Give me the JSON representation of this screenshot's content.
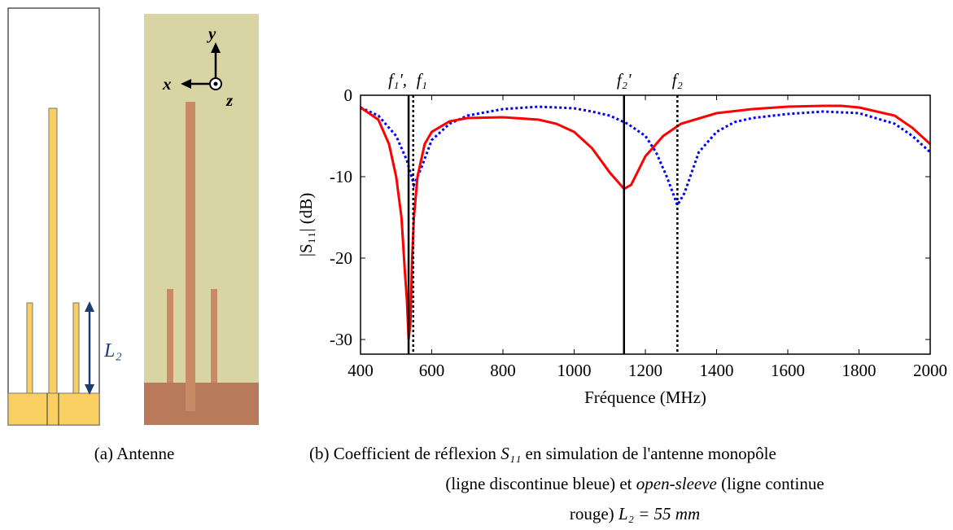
{
  "panel_a": {
    "label": "L₂",
    "axis_x": "x",
    "axis_y": "y",
    "axis_z": "z",
    "caption": "(a) Antenne"
  },
  "panel_b": {
    "caption": [
      [
        "(b) Coefficient de réflexion ",
        "S₁₁",
        " en simulation de l'antenne monopôle"
      ],
      [
        "(ligne discontinue bleue) et ",
        "open-sleeve",
        " (ligne continue"
      ],
      [
        "rouge) ",
        "L₂ = 55 mm"
      ]
    ]
  },
  "chart_data": {
    "type": "line",
    "xlabel": "Fréquence (MHz)",
    "ylabel": "|S₁₁| (dB)",
    "xlim": [
      400,
      2000
    ],
    "ylim": [
      -31.8,
      0
    ],
    "xticks": [
      400,
      600,
      800,
      1000,
      1200,
      1400,
      1600,
      1800,
      2000
    ],
    "yticks": [
      0,
      -10,
      -20,
      -30
    ],
    "markers": [
      {
        "x": 535,
        "label": "f₁',",
        "style": "solid"
      },
      {
        "x": 548,
        "label": "f₁",
        "style": "dotted"
      },
      {
        "x": 1140,
        "label": "f₂'",
        "style": "solid"
      },
      {
        "x": 1290,
        "label": "f₂",
        "style": "dotted"
      }
    ],
    "series": [
      {
        "color": "#0000ff",
        "style": "dotted",
        "x": [
          400,
          450,
          500,
          530,
          550,
          570,
          600,
          650,
          700,
          800,
          900,
          1000,
          1050,
          1100,
          1150,
          1200,
          1230,
          1260,
          1290,
          1310,
          1350,
          1400,
          1450,
          1500,
          1600,
          1700,
          1800,
          1900,
          1950,
          2000
        ],
        "values": [
          -1.5,
          -2.5,
          -5,
          -8,
          -11,
          -9,
          -5.5,
          -3.5,
          -2.5,
          -1.7,
          -1.4,
          -1.6,
          -2,
          -2.5,
          -3.5,
          -5,
          -7,
          -10,
          -13.5,
          -12,
          -7,
          -4.5,
          -3.3,
          -2.8,
          -2.3,
          -2,
          -2.2,
          -3.5,
          -5,
          -7
        ]
      },
      {
        "color": "#ff0000",
        "style": "solid",
        "x": [
          400,
          450,
          480,
          500,
          515,
          525,
          530,
          535,
          540,
          545,
          550,
          560,
          580,
          600,
          650,
          700,
          800,
          900,
          950,
          1000,
          1050,
          1100,
          1140,
          1160,
          1200,
          1250,
          1300,
          1400,
          1500,
          1600,
          1700,
          1750,
          1800,
          1900,
          1950,
          2000
        ],
        "values": [
          -1.5,
          -3,
          -6,
          -10,
          -15,
          -22,
          -25,
          -30,
          -28,
          -20,
          -15,
          -10,
          -6,
          -4.5,
          -3.2,
          -2.8,
          -2.7,
          -3,
          -3.5,
          -4.5,
          -6.5,
          -9.5,
          -11.5,
          -11,
          -7.5,
          -5,
          -3.5,
          -2.2,
          -1.7,
          -1.4,
          -1.3,
          -1.3,
          -1.5,
          -2.5,
          -4,
          -6
        ]
      }
    ]
  }
}
